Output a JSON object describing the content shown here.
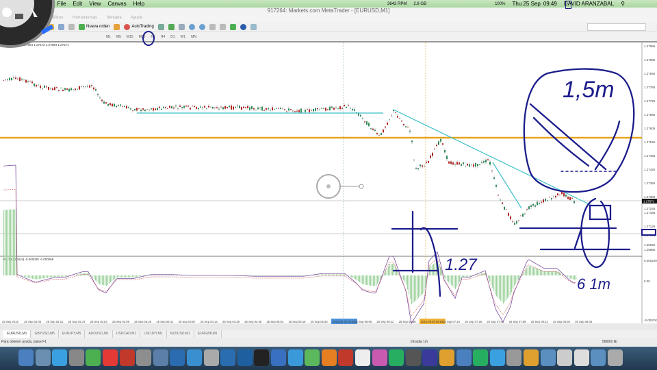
{
  "mac_menubar": {
    "app": "ble",
    "items": [
      "File",
      "Edit",
      "View",
      "Canvas",
      "Help"
    ],
    "status": {
      "fan": "3642 RPM",
      "memory": "2.8 GB",
      "battery": "100%",
      "date": "Thu 25 Sep",
      "time": "09:49",
      "user": "DAVID ARANZABAL"
    }
  },
  "window": {
    "title": "917264: Markets.com MetaTrader - [EURUSD,M1]"
  },
  "app_menu": [
    "Gráficos",
    "Herramientas",
    "Ventana",
    "Ayuda"
  ],
  "toolbar": {
    "new_order": "Nueva orden",
    "autotrading": "AutoTrading"
  },
  "timeframes": [
    "M1",
    "M5",
    "M15",
    "M30",
    "H1",
    "H4",
    "D1",
    "W1",
    "MN"
  ],
  "chart": {
    "header": "EURUSD,M1  1.27594 1.27572 1.27594 1.27571",
    "price_labels": [
      "1.27965",
      "1.27905",
      "1.27845",
      "1.27785",
      "1.27725",
      "1.27665",
      "1.27605",
      "1.27545",
      "1.27485",
      "1.27425",
      "1.27365",
      "1.27305",
      "1.27245",
      "1.27185",
      "1.27125",
      "1.27065",
      "1.26945",
      "1.26885"
    ],
    "current_price": "1.27571",
    "macd_header": "MACD(12,26,9) -0.000038 -0.000068",
    "macd_labels": [
      "0.000249",
      "0.00",
      "-0.000781"
    ],
    "time_labels": [
      "25 Sep 2014",
      "25 Sep 02:05",
      "25 Sep 02:21",
      "25 Sep 02:37",
      "25 Sep 02:53",
      "25 Sep 03:09",
      "25 Sep 03:26",
      "25 Sep 03:41",
      "25 Sep 03:57",
      "25 Sep 04:13",
      "25 Sep 04:29",
      "25 Sep 04:45",
      "25 Sep 05:02",
      "25 Sep 05:18",
      "25 Sep 05:34",
      "2014.09.25 05:50",
      "25 Sep 06:06",
      "25 Sep 06:22",
      "25 Sep 06:38",
      "2014.09.25 06:54",
      "25 Sep 07:10",
      "25 Sep 07:26",
      "25 Sep 07:42",
      "25 Sep 07:58",
      "25 Sep 08:14",
      "25 Sep 08:30",
      "25 Sep 08:46"
    ],
    "handwritten": [
      "1,5m",
      "1.27",
      "6 1m"
    ],
    "colors": {
      "level_line": "#e8a21a",
      "trendline": "#3bbfc8",
      "ink": "#1c1c8c",
      "bull": "#2e8b57",
      "bear": "#b22222"
    }
  },
  "symbol_tabs": [
    "EURUSD,M1",
    "GBPUSD,M5",
    "EURJPY,M5",
    "AUDUSD,M1",
    "USDCAD,M1",
    "USDJPY,M1",
    "NZDUSD,M1",
    "EURGBP,M1"
  ],
  "statusbar": {
    "help": "Para obtener ayuda, pulse F1",
    "profile": "Intradia 1m",
    "traffic": "5669/2 kb"
  }
}
